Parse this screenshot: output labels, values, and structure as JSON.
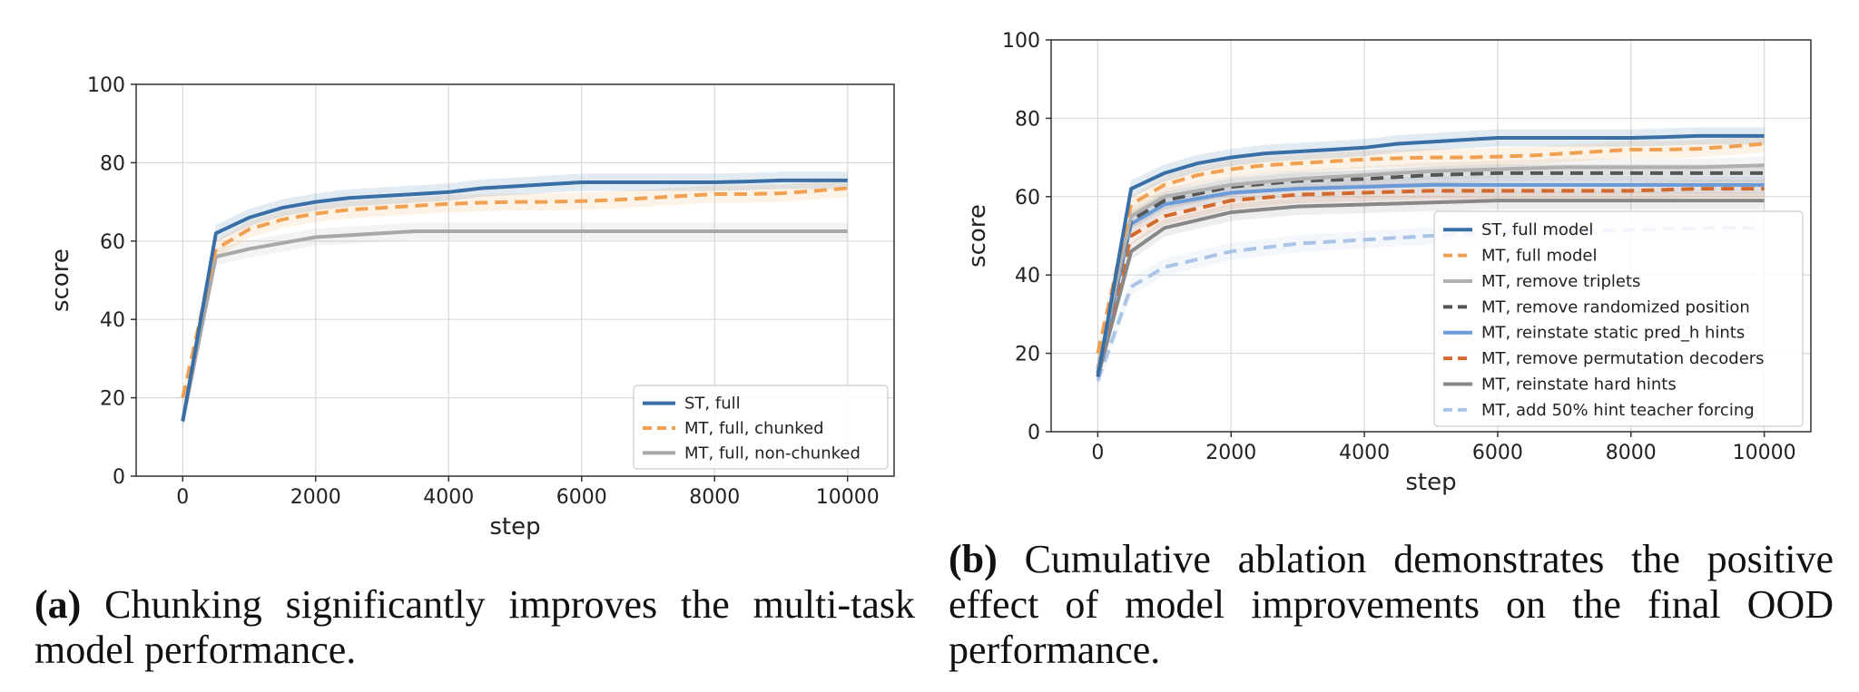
{
  "captions": {
    "a": {
      "label": "(a)",
      "text": "Chunking significantly improves the multi-task model performance."
    },
    "b": {
      "label": "(b)",
      "text": "Cumulative ablation demonstrates the positive effect of model improvements on the final OOD performance."
    }
  },
  "chart_data": [
    {
      "type": "line",
      "xlabel": "step",
      "ylabel": "score",
      "xlim": [
        -700,
        10700
      ],
      "ylim": [
        0,
        100
      ],
      "xticks": [
        0,
        2000,
        4000,
        6000,
        8000,
        10000
      ],
      "yticks": [
        0,
        20,
        40,
        60,
        80,
        100
      ],
      "grid": true,
      "legend_position": "bottom-right",
      "series": [
        {
          "name": "ST, full",
          "color": "#3a6fa5",
          "style": "solid",
          "x": [
            0,
            500,
            1000,
            1500,
            2000,
            2500,
            3000,
            3500,
            4000,
            4500,
            5000,
            5500,
            6000,
            6500,
            7000,
            7500,
            8000,
            8500,
            9000,
            9500,
            10000
          ],
          "y": [
            14,
            62,
            66,
            68.5,
            70,
            71,
            71.5,
            72,
            72.5,
            73.5,
            74,
            74.5,
            75,
            75,
            75,
            75,
            75,
            75.2,
            75.5,
            75.5,
            75.5
          ]
        },
        {
          "name": "MT, full, chunked",
          "color": "#f0a050",
          "style": "dashed",
          "x": [
            0,
            500,
            1000,
            1500,
            2000,
            2500,
            3000,
            3500,
            4000,
            4500,
            5000,
            5500,
            6000,
            6500,
            7000,
            7500,
            8000,
            8500,
            9000,
            9500,
            10000
          ],
          "y": [
            20,
            58,
            63,
            65.5,
            67,
            68,
            68.5,
            69,
            69.5,
            69.8,
            70,
            70,
            70.2,
            70.5,
            71,
            71.5,
            72,
            72,
            72.2,
            72.8,
            73.5
          ]
        },
        {
          "name": "MT, full, non-chunked",
          "color": "#a8a8a8",
          "style": "solid",
          "x": [
            0,
            500,
            1000,
            1500,
            2000,
            2500,
            3000,
            3500,
            4000,
            4500,
            5000,
            5500,
            6000,
            6500,
            7000,
            7500,
            8000,
            8500,
            9000,
            9500,
            10000
          ],
          "y": [
            14,
            56,
            58,
            59.5,
            61,
            61.5,
            62,
            62.5,
            62.5,
            62.5,
            62.5,
            62.5,
            62.5,
            62.5,
            62.5,
            62.5,
            62.5,
            62.5,
            62.5,
            62.5,
            62.5
          ]
        }
      ]
    },
    {
      "type": "line",
      "xlabel": "step",
      "ylabel": "score",
      "xlim": [
        -700,
        10700
      ],
      "ylim": [
        0,
        100
      ],
      "xticks": [
        0,
        2000,
        4000,
        6000,
        8000,
        10000
      ],
      "yticks": [
        0,
        20,
        40,
        60,
        80,
        100
      ],
      "grid": true,
      "legend_position": "bottom-right",
      "series": [
        {
          "name": "ST, full model",
          "color": "#3a6fa5",
          "style": "solid",
          "x": [
            0,
            500,
            1000,
            1500,
            2000,
            2500,
            3000,
            3500,
            4000,
            4500,
            5000,
            5500,
            6000,
            6500,
            7000,
            7500,
            8000,
            8500,
            9000,
            9500,
            10000
          ],
          "y": [
            14,
            62,
            66,
            68.5,
            70,
            71,
            71.5,
            72,
            72.5,
            73.5,
            74,
            74.5,
            75,
            75,
            75,
            75,
            75,
            75.2,
            75.5,
            75.5,
            75.5
          ]
        },
        {
          "name": "MT, full model",
          "color": "#f0a050",
          "style": "dashed",
          "x": [
            0,
            500,
            1000,
            1500,
            2000,
            2500,
            3000,
            3500,
            4000,
            4500,
            5000,
            5500,
            6000,
            6500,
            7000,
            7500,
            8000,
            8500,
            9000,
            9500,
            10000
          ],
          "y": [
            20,
            58,
            63,
            65.5,
            67,
            68,
            68.5,
            69,
            69.5,
            69.8,
            70,
            70,
            70.2,
            70.5,
            71,
            71.5,
            72,
            72,
            72.2,
            72.8,
            73.5
          ]
        },
        {
          "name": "MT, remove triplets",
          "color": "#b0b0b0",
          "style": "solid",
          "x": [
            0,
            500,
            1000,
            2000,
            3000,
            4000,
            5000,
            6000,
            7000,
            8000,
            9000,
            10000
          ],
          "y": [
            16,
            55,
            60,
            63,
            64.5,
            65.5,
            66.5,
            67,
            67.5,
            67.5,
            67.5,
            68
          ]
        },
        {
          "name": "MT, remove randomized position",
          "color": "#555555",
          "style": "dashed",
          "x": [
            0,
            500,
            1000,
            2000,
            3000,
            4000,
            5000,
            6000,
            7000,
            8000,
            9000,
            10000
          ],
          "y": [
            16,
            54,
            59,
            62.5,
            64,
            64.5,
            65.5,
            66,
            66,
            66,
            66,
            66
          ]
        },
        {
          "name": "MT, reinstate static pred_h hints",
          "color": "#6a9ad8",
          "style": "solid",
          "x": [
            0,
            500,
            1000,
            2000,
            3000,
            4000,
            5000,
            6000,
            7000,
            8000,
            9000,
            10000
          ],
          "y": [
            15,
            53,
            58,
            61,
            62,
            62.5,
            63,
            63,
            63,
            63,
            63,
            63
          ]
        },
        {
          "name": "MT, remove permutation decoders",
          "color": "#d2692a",
          "style": "dashed",
          "x": [
            0,
            500,
            1000,
            2000,
            3000,
            4000,
            5000,
            6000,
            7000,
            8000,
            9000,
            10000
          ],
          "y": [
            15,
            50,
            55,
            59,
            60.5,
            61,
            61.5,
            61.5,
            61.5,
            61.5,
            62,
            62
          ]
        },
        {
          "name": "MT, reinstate hard hints",
          "color": "#888888",
          "style": "solid",
          "x": [
            0,
            500,
            1000,
            2000,
            3000,
            4000,
            5000,
            6000,
            7000,
            8000,
            9000,
            10000
          ],
          "y": [
            14,
            46,
            52,
            56,
            57.5,
            58,
            58.5,
            59,
            59,
            59,
            59,
            59
          ]
        },
        {
          "name": "MT, add 50% hint teacher forcing",
          "color": "#aac4e8",
          "style": "dashed",
          "x": [
            0,
            500,
            1000,
            2000,
            3000,
            4000,
            5000,
            6000,
            7000,
            8000,
            9000,
            10000
          ],
          "y": [
            13,
            37,
            42,
            46,
            48,
            49,
            50,
            51,
            51,
            51.5,
            52,
            52
          ]
        }
      ]
    }
  ]
}
